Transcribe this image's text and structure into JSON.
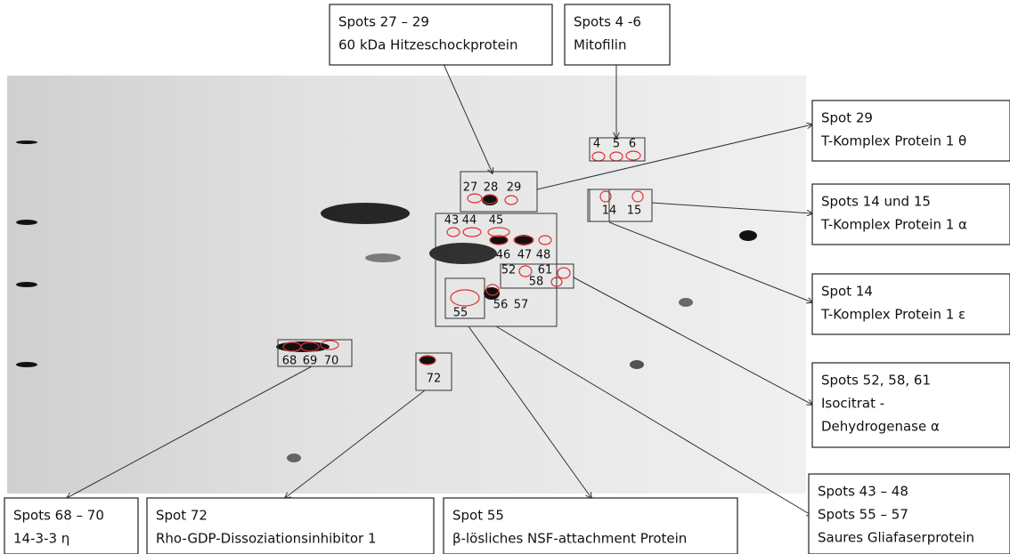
{
  "callouts": [
    {
      "lines": [
        "Spots 27 – 29",
        "60 kDa Hitzeschockprotein"
      ]
    },
    {
      "lines": [
        "Spots 4 -6",
        "Mitofilin"
      ]
    },
    {
      "lines": [
        "Spot 29",
        "T-Komplex Protein 1 θ"
      ]
    },
    {
      "lines": [
        "Spots 14 und 15",
        "T-Komplex Protein 1 α"
      ]
    },
    {
      "lines": [
        "Spot 14",
        "T-Komplex Protein 1 ε"
      ]
    },
    {
      "lines": [
        "Spots 52, 58, 61",
        "Isocitrat -",
        "Dehydrogenase α"
      ]
    },
    {
      "lines": [
        "Spots 43 – 48",
        "Spots 55 – 57",
        "Saures Gliafaserprotein"
      ]
    },
    {
      "lines": [
        "Spots 68 – 70",
        "14-3-3 η"
      ]
    },
    {
      "lines": [
        "Spot 72",
        "Rho-GDP-Dissoziationsinhibitor 1"
      ]
    },
    {
      "lines": [
        "Spot 55",
        "β-lösliches NSF-attachment Protein"
      ]
    }
  ],
  "spot_labels": [
    "4",
    "5",
    "6",
    "27",
    "28",
    "29",
    "14",
    "15",
    "43",
    "44",
    "45",
    "46",
    "47",
    "48",
    "52",
    "61",
    "58",
    "55",
    "56",
    "57",
    "68",
    "69",
    "70",
    "72"
  ]
}
